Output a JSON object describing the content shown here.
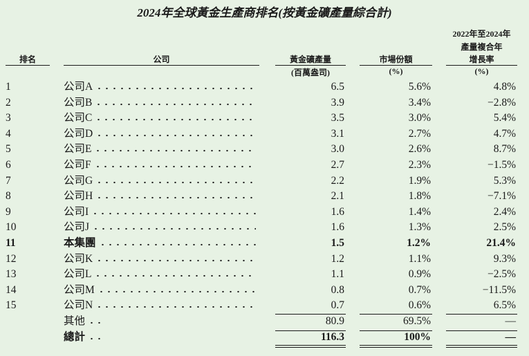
{
  "title": "2024年全球黃金生產商排名(按黃金礦產量綜合計)",
  "header": {
    "rank": "排名",
    "company": "公司",
    "output": "黃金礦產量",
    "output_unit": "(百萬盎司)",
    "share": "市場份額",
    "share_unit": "(%)",
    "cagr": [
      "2022年至2024年",
      "產量複合年",
      "增長率"
    ],
    "cagr_unit": "(%)"
  },
  "rows": [
    {
      "rank": "1",
      "company": "公司A",
      "output": "6.5",
      "share": "5.6%",
      "cagr": "4.8%"
    },
    {
      "rank": "2",
      "company": "公司B",
      "output": "3.9",
      "share": "3.4%",
      "cagr": "−2.8%"
    },
    {
      "rank": "3",
      "company": "公司C",
      "output": "3.5",
      "share": "3.0%",
      "cagr": "5.4%"
    },
    {
      "rank": "4",
      "company": "公司D",
      "output": "3.1",
      "share": "2.7%",
      "cagr": "4.7%"
    },
    {
      "rank": "5",
      "company": "公司E",
      "output": "3.0",
      "share": "2.6%",
      "cagr": "8.7%"
    },
    {
      "rank": "6",
      "company": "公司F",
      "output": "2.7",
      "share": "2.3%",
      "cagr": "−1.5%"
    },
    {
      "rank": "7",
      "company": "公司G",
      "output": "2.2",
      "share": "1.9%",
      "cagr": "5.3%"
    },
    {
      "rank": "8",
      "company": "公司H",
      "output": "2.1",
      "share": "1.8%",
      "cagr": "−7.1%"
    },
    {
      "rank": "9",
      "company": "公司I",
      "output": "1.6",
      "share": "1.4%",
      "cagr": "2.4%"
    },
    {
      "rank": "10",
      "company": "公司J",
      "output": "1.6",
      "share": "1.3%",
      "cagr": "2.5%"
    },
    {
      "rank": "11",
      "company": "本集團",
      "output": "1.5",
      "share": "1.2%",
      "cagr": "21.4%",
      "bold": true
    },
    {
      "rank": "12",
      "company": "公司K",
      "output": "1.2",
      "share": "1.1%",
      "cagr": "9.3%"
    },
    {
      "rank": "13",
      "company": "公司L",
      "output": "1.1",
      "share": "0.9%",
      "cagr": "−2.5%"
    },
    {
      "rank": "14",
      "company": "公司M",
      "output": "0.8",
      "share": "0.7%",
      "cagr": "−11.5%"
    },
    {
      "rank": "15",
      "company": "公司N",
      "output": "0.7",
      "share": "0.6%",
      "cagr": "6.5%"
    }
  ],
  "others": {
    "company": "其他",
    "output": "80.9",
    "share": "69.5%",
    "cagr": "—"
  },
  "total": {
    "company": "總計",
    "output": "116.3",
    "share": "100%",
    "cagr": "—",
    "bold": true
  }
}
